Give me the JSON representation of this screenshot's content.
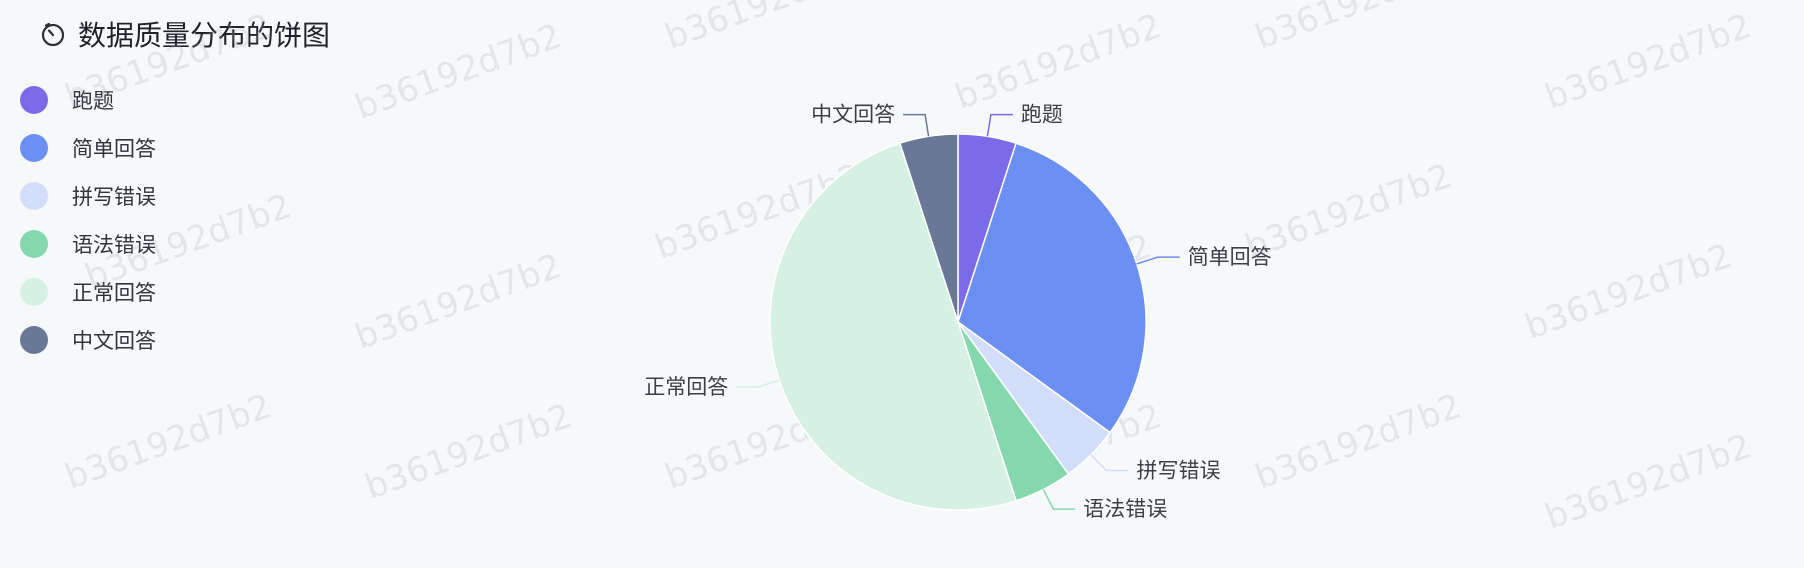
{
  "header": {
    "title": "数据质量分布的饼图",
    "icon": "timer-icon"
  },
  "watermark": "b36192d7b2",
  "chart_data": {
    "type": "pie",
    "title": "数据质量分布的饼图",
    "legend_position": "left",
    "slices": [
      {
        "label": "跑题",
        "value": 5,
        "color": "#7b6be8"
      },
      {
        "label": "简单回答",
        "value": 30,
        "color": "#6b8ff2"
      },
      {
        "label": "拼写错误",
        "value": 5,
        "color": "#d2ddf9"
      },
      {
        "label": "语法错误",
        "value": 5,
        "color": "#85d8ad"
      },
      {
        "label": "正常回答",
        "value": 50,
        "color": "#d6f1e3"
      },
      {
        "label": "中文回答",
        "value": 5,
        "color": "#687896"
      }
    ]
  }
}
